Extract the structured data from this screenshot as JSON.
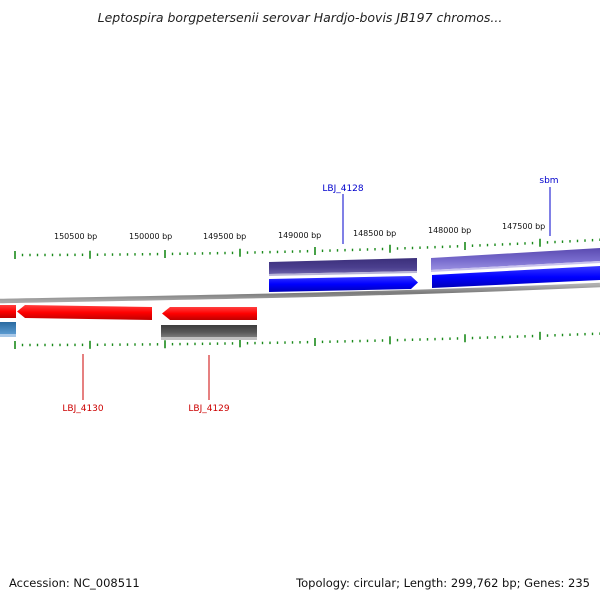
{
  "header": {
    "title": "Leptospira borgpetersenii serovar Hardjo-bovis JB197 chromos..."
  },
  "footer": {
    "accession": "Accession: NC_008511",
    "summary": "Topology: circular; Length: 299,762 bp; Genes: 235"
  },
  "map": {
    "tick_labels": [
      "150500 bp",
      "150000 bp",
      "149500 bp",
      "149000 bp",
      "148500 bp",
      "148000 bp",
      "147500 bp"
    ],
    "tick_color": "#1a8a1a",
    "backbone_color": "#8c8c8c"
  },
  "genes": [
    {
      "label": "LBJ_4128",
      "color": "#0000cc"
    },
    {
      "label": "sbm",
      "color": "#0000cc"
    },
    {
      "label": "LBJ_4130",
      "color": "#cc0000"
    },
    {
      "label": "LBJ_4129",
      "color": "#cc0000"
    }
  ],
  "colors": {
    "forward_gene": "#0000ff",
    "reverse_gene": "#ff0000",
    "forward_feature": "#4b3f8f",
    "forward_feature_light": "#7b6fcf",
    "reverse_feature": "#585858",
    "partial_feature": "#3a7ab0"
  }
}
